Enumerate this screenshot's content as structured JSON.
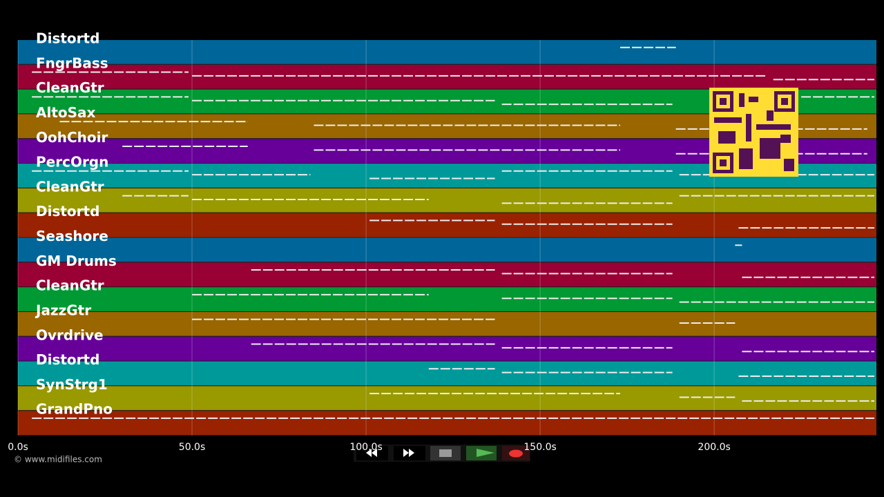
{
  "tracks": [
    {
      "name": "Distortd",
      "color": "#006699",
      "segments": [
        [
          173,
          189
        ]
      ]
    },
    {
      "name": "FngrBass",
      "color": "#990033",
      "segments": [
        [
          4,
          49
        ],
        [
          50,
          215
        ],
        [
          217,
          246
        ]
      ]
    },
    {
      "name": "CleanGtr",
      "color": "#009933",
      "segments": [
        [
          4,
          49
        ],
        [
          50,
          137
        ],
        [
          139,
          188
        ],
        [
          225,
          246
        ]
      ]
    },
    {
      "name": "AltoSax",
      "color": "#996600",
      "segments": [
        [
          12,
          66
        ],
        [
          85,
          173
        ],
        [
          189,
          244
        ]
      ]
    },
    {
      "name": "OohChoir",
      "color": "#660099",
      "segments": [
        [
          30,
          66
        ],
        [
          85,
          173
        ],
        [
          189,
          244
        ]
      ]
    },
    {
      "name": "PercOrgn",
      "color": "#009999",
      "segments": [
        [
          4,
          49
        ],
        [
          50,
          84
        ],
        [
          101,
          137
        ],
        [
          139,
          188
        ],
        [
          190,
          246
        ]
      ]
    },
    {
      "name": "CleanGtr",
      "color": "#999900",
      "segments": [
        [
          30,
          49
        ],
        [
          50,
          118
        ],
        [
          139,
          188
        ],
        [
          190,
          246
        ]
      ]
    },
    {
      "name": "Distortd",
      "color": "#992200",
      "segments": [
        [
          101,
          137
        ],
        [
          139,
          188
        ],
        [
          207,
          246
        ]
      ]
    },
    {
      "name": "Seashore",
      "color": "#006699",
      "segments": [
        [
          206,
          208
        ]
      ]
    },
    {
      "name": "GM Drums",
      "color": "#990033",
      "segments": [
        [
          67,
          137
        ],
        [
          139,
          188
        ],
        [
          208,
          246
        ]
      ]
    },
    {
      "name": "CleanGtr",
      "color": "#009933",
      "segments": [
        [
          50,
          118
        ],
        [
          139,
          188
        ],
        [
          190,
          246
        ]
      ]
    },
    {
      "name": "JazzGtr",
      "color": "#996600",
      "segments": [
        [
          50,
          137
        ],
        [
          190,
          206
        ]
      ]
    },
    {
      "name": "Ovrdrive",
      "color": "#660099",
      "segments": [
        [
          67,
          137
        ],
        [
          139,
          188
        ],
        [
          208,
          246
        ]
      ]
    },
    {
      "name": "Distortd",
      "color": "#009999",
      "segments": [
        [
          118,
          137
        ],
        [
          139,
          188
        ],
        [
          207,
          246
        ]
      ]
    },
    {
      "name": "SynStrg1",
      "color": "#999900",
      "segments": [
        [
          101,
          173
        ],
        [
          190,
          206
        ],
        [
          208,
          246
        ]
      ]
    },
    {
      "name": "GrandPno",
      "color": "#992200",
      "segments": [
        [
          4,
          246
        ]
      ]
    }
  ],
  "xlim": [
    0,
    246.6
  ],
  "xticks": [
    {
      "value": 0,
      "label": "0.0s"
    },
    {
      "value": 50,
      "label": "50.0s"
    },
    {
      "value": 100,
      "label": "100.0s"
    },
    {
      "value": 150,
      "label": "150.0s"
    },
    {
      "value": 200,
      "label": "200.0s"
    }
  ],
  "footer": "© www.midifiles.com"
}
